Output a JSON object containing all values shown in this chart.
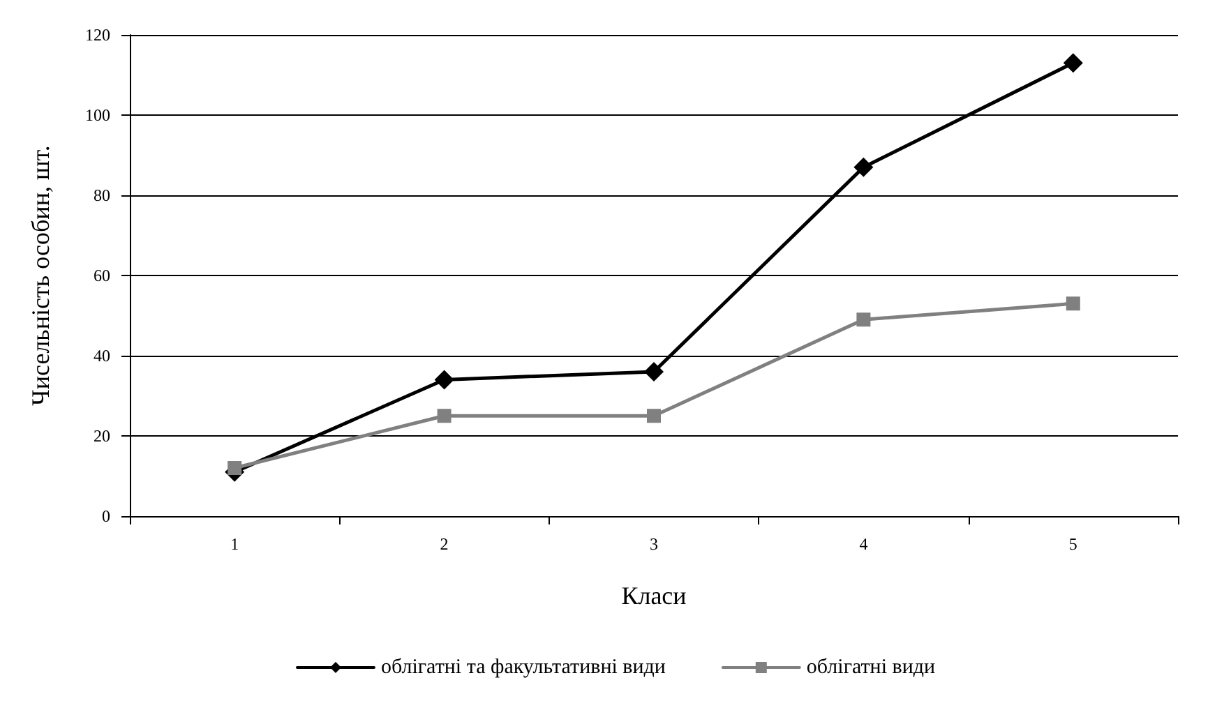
{
  "chart_data": {
    "type": "line",
    "xlabel": "Класи",
    "ylabel": "Чисельність особин, шт.",
    "categories": [
      "1",
      "2",
      "3",
      "4",
      "5"
    ],
    "series": [
      {
        "name": "облігатні та факультативні види",
        "color": "#000000",
        "marker": "diamond",
        "values": [
          11,
          34,
          36,
          87,
          113
        ]
      },
      {
        "name": "облігатні види",
        "color": "#808080",
        "marker": "square",
        "values": [
          12,
          25,
          25,
          49,
          53
        ]
      }
    ],
    "ylim": [
      0,
      120
    ],
    "yticks": [
      0,
      20,
      40,
      60,
      80,
      100,
      120
    ],
    "grid": "y",
    "legend": "bottom",
    "line_style": "solid"
  }
}
